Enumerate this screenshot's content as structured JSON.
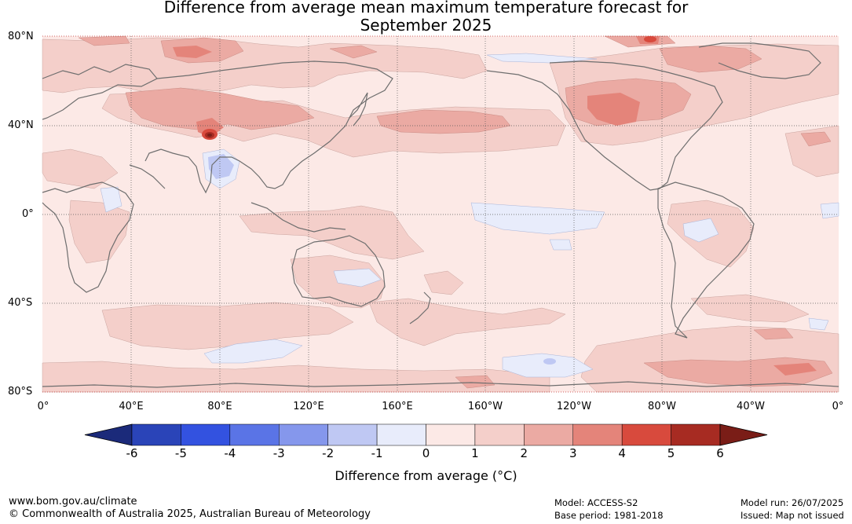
{
  "title": {
    "line1": "Difference from average mean maximum temperature forecast for",
    "line2": "September 2025"
  },
  "map": {
    "lat_labels": [
      "80°N",
      "40°N",
      "0°",
      "40°S",
      "80°S"
    ],
    "lon_labels": [
      "0°",
      "40°E",
      "80°E",
      "120°E",
      "160°E",
      "160°W",
      "120°W",
      "80°W",
      "40°W",
      "0°"
    ],
    "grid": true,
    "projection": "equirectangular, 0° centred on Pacific"
  },
  "colorbar": {
    "label": "Difference from average (°C)",
    "ticks": [
      "-6",
      "-5",
      "-4",
      "-3",
      "-2",
      "-1",
      "0",
      "1",
      "2",
      "3",
      "4",
      "5",
      "6"
    ],
    "colors": [
      "#1b2a7a",
      "#2a44b8",
      "#3352e0",
      "#5a74e6",
      "#8597ec",
      "#bfc8f3",
      "#e8ecfb",
      "#fce9e6",
      "#f4cfca",
      "#ebaaa3",
      "#e4847a",
      "#d84a3d",
      "#a72b22",
      "#7a1d17"
    ]
  },
  "footer": {
    "website": "www.bom.gov.au/climate",
    "copyright": "© Commonwealth of Australia 2025, Australian Bureau of Meteorology",
    "model": "Model: ACCESS-S2",
    "base_period": "Base period: 1981-2018",
    "model_run": "Model run: 26/07/2025",
    "issued": "Issued: Map not issued"
  }
}
